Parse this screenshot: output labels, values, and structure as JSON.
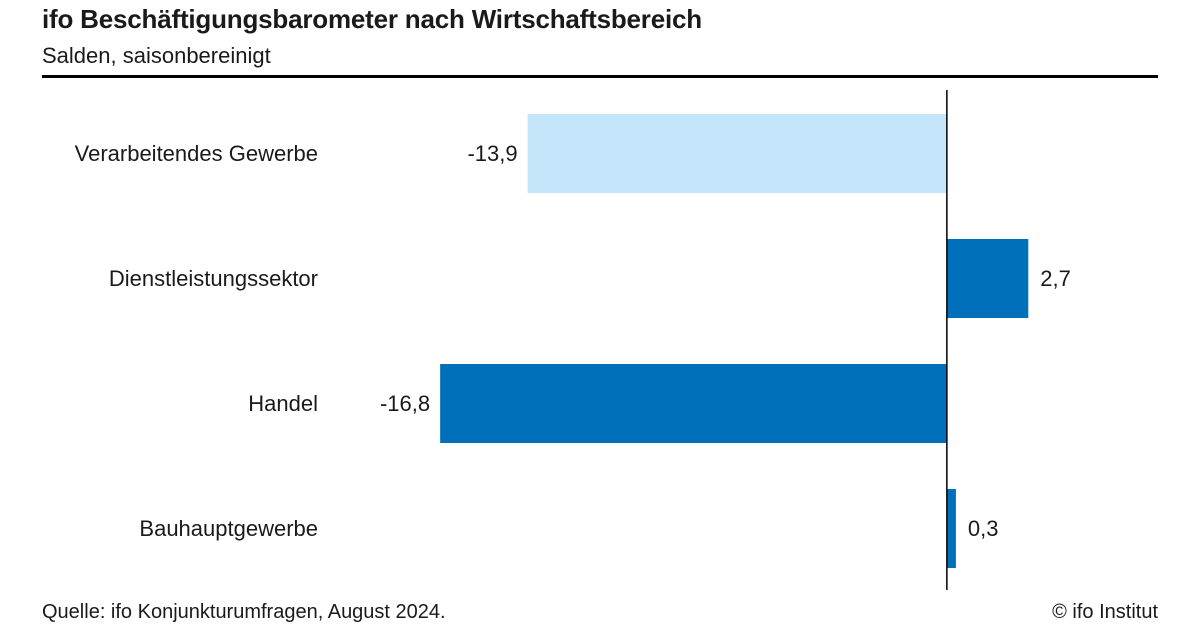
{
  "header": {
    "title": "ifo Beschäftigungsbarometer nach Wirtschaftsbereich",
    "subtitle": "Salden, saisonbereinigt"
  },
  "footer": {
    "source": "Quelle: ifo Konjunkturumfragen, August 2024.",
    "copyright": "© ifo Institut"
  },
  "colors": {
    "highlight": "#C5E5FB",
    "bar": "#0070BA",
    "axis": "#000000"
  },
  "chart_data": {
    "type": "bar",
    "orientation": "horizontal",
    "categories": [
      "Verarbeitendes Gewerbe",
      "Dienstleistungssektor",
      "Handel",
      "Bauhauptgewerbe"
    ],
    "values": [
      -13.9,
      2.7,
      -16.8,
      0.3
    ],
    "value_labels": [
      "-13,9",
      "2,7",
      "-16,8",
      "0,3"
    ],
    "bar_colors": [
      "#C5E5FB",
      "#0070BA",
      "#0070BA",
      "#0070BA"
    ],
    "xlim": [
      -30,
      7
    ],
    "grid": false,
    "legend": "none"
  }
}
